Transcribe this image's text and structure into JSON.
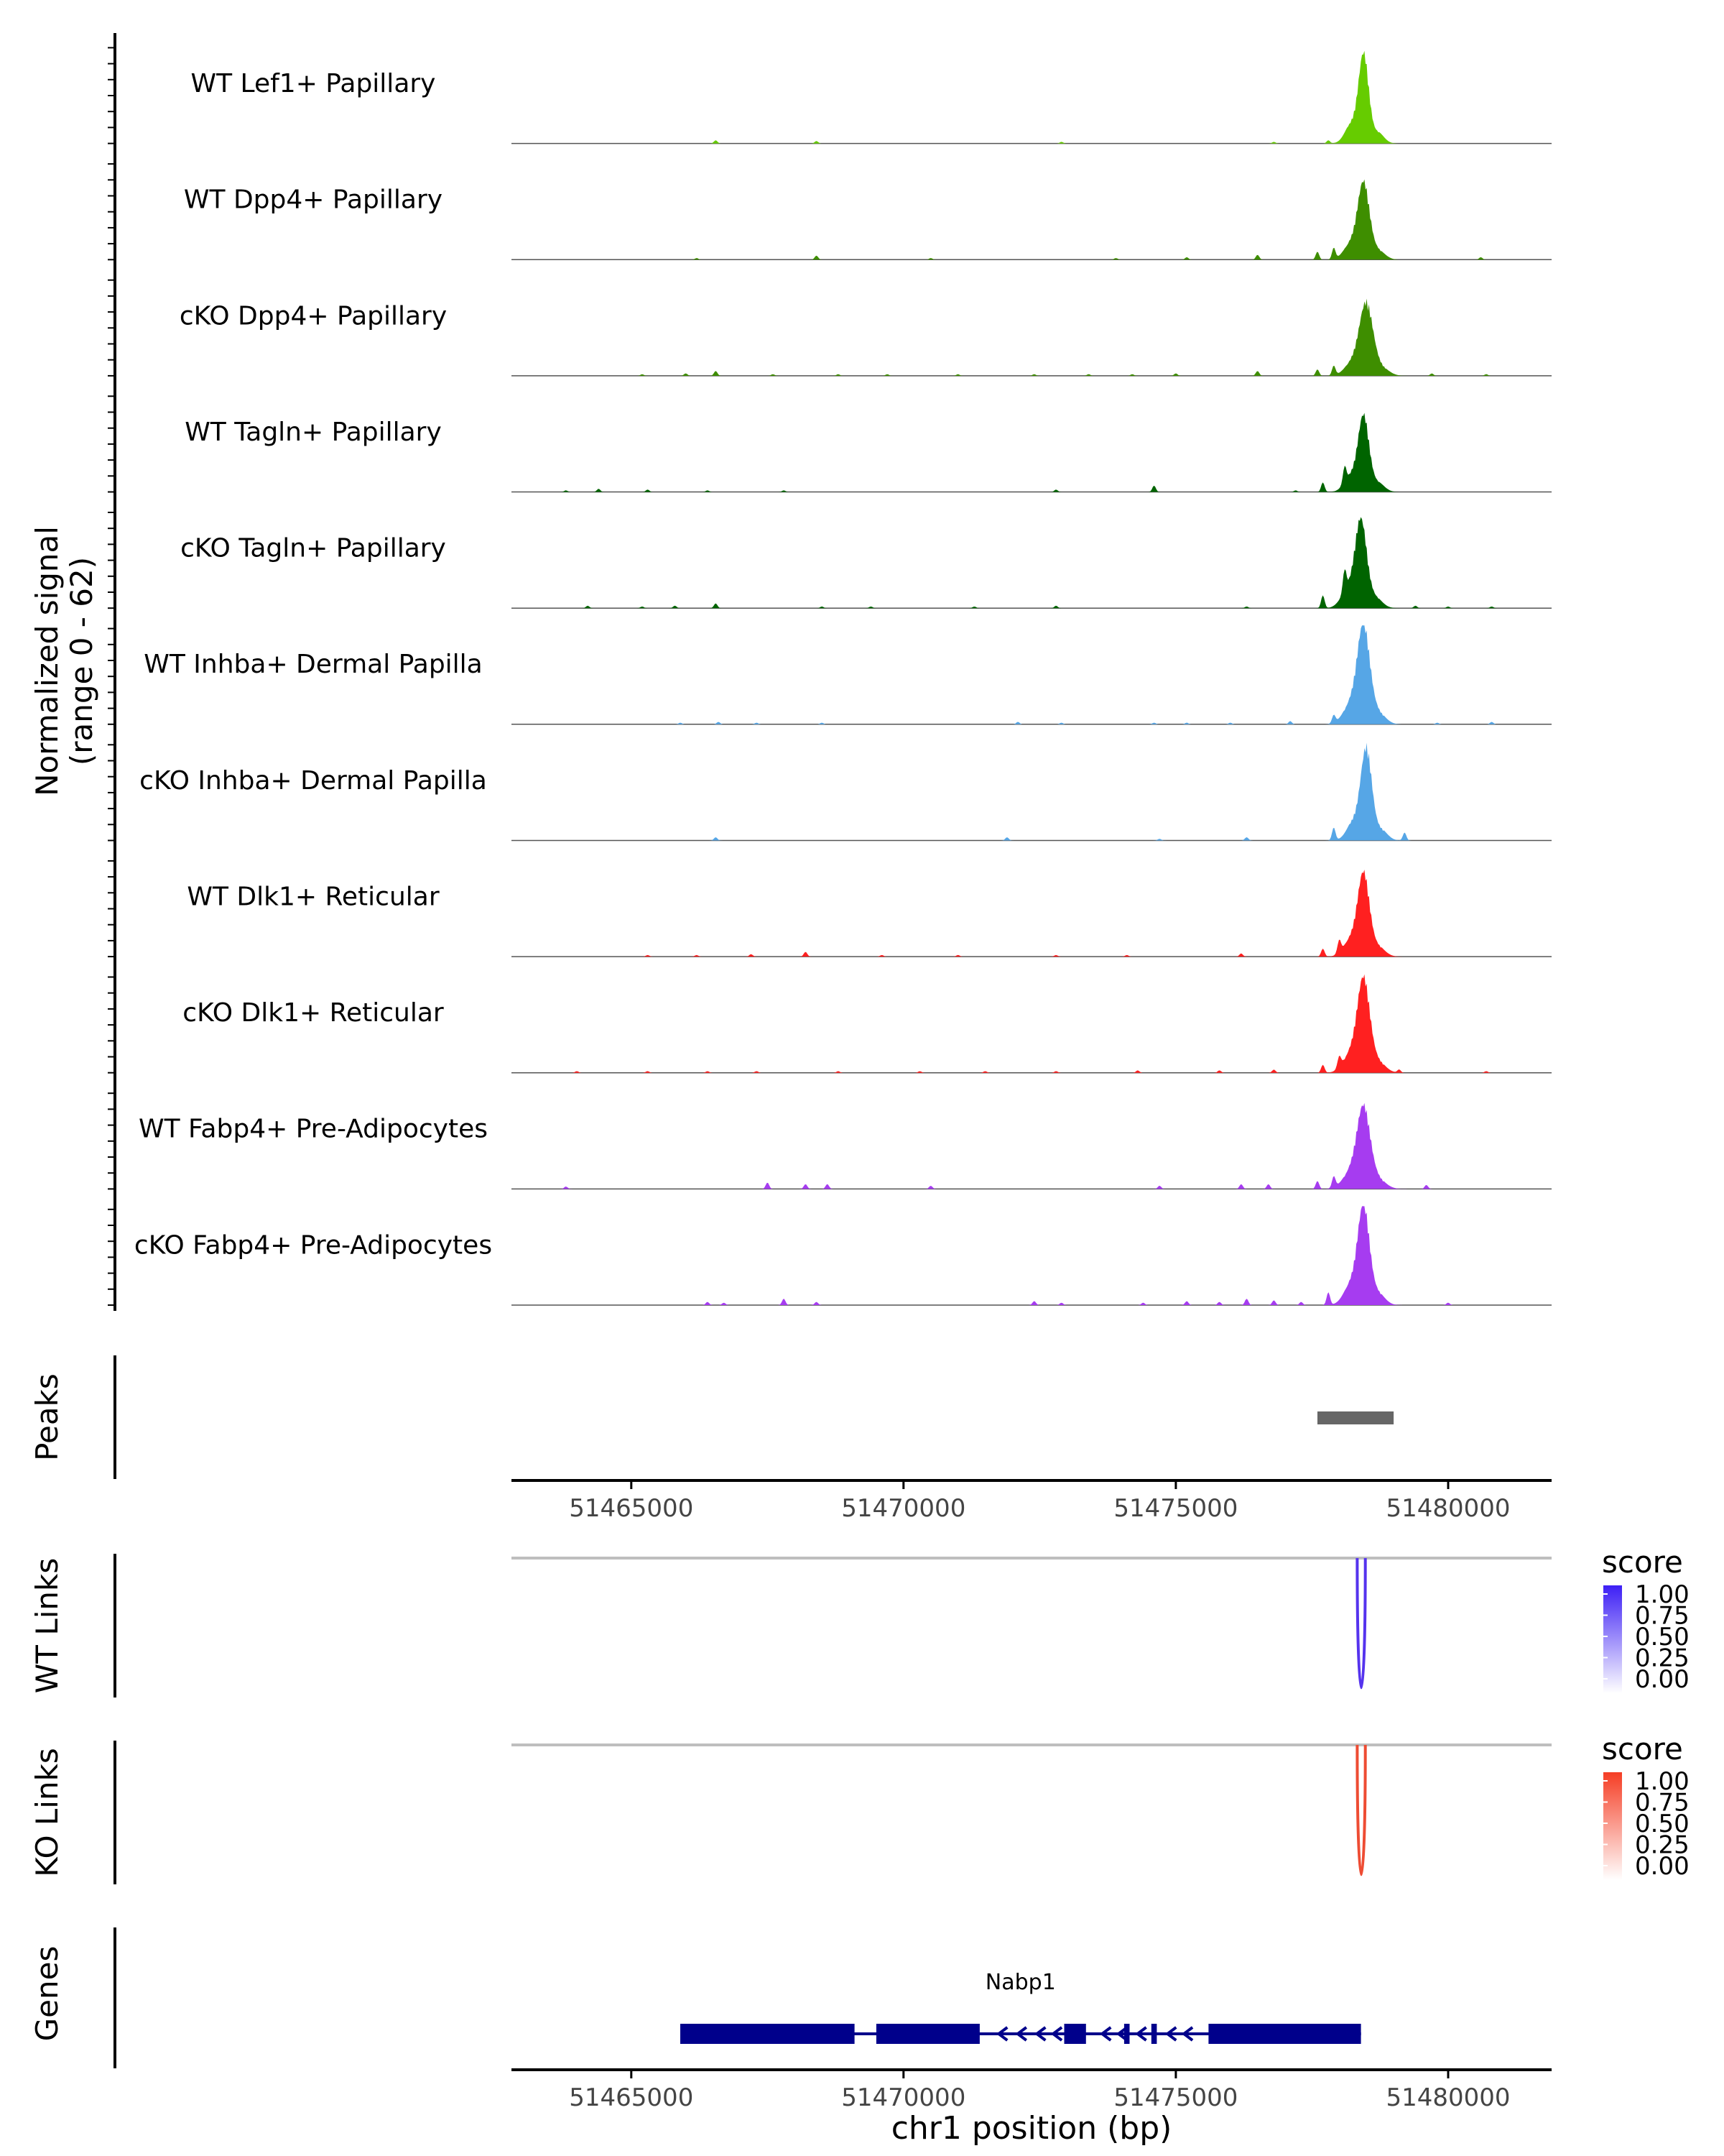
{
  "chart_data": {
    "type": "genome-coverage",
    "region": {
      "chromosome": "chr1",
      "start": 51462800,
      "end": 51481900
    },
    "coverage": {
      "ylabel_line1": "Normalized signal",
      "ylabel_line2": "(range 0 - 62)",
      "ylim": [
        0,
        62
      ],
      "tracks": [
        {
          "name": "WT Lef1+ Papillary",
          "color": "#66CC00",
          "peak_center": 51478450,
          "peak_height": 57,
          "peak_width": 130,
          "blips": [
            [
              51466550,
              2
            ],
            [
              51468400,
              1.5
            ],
            [
              51472900,
              1
            ],
            [
              51476800,
              1
            ],
            [
              51477800,
              2
            ]
          ]
        },
        {
          "name": "WT Dpp4+ Papillary",
          "color": "#3E8E00",
          "peak_center": 51478450,
          "peak_height": 48,
          "peak_width": 150,
          "blips": [
            [
              51466200,
              1
            ],
            [
              51468400,
              2.5
            ],
            [
              51470500,
              1
            ],
            [
              51473900,
              1
            ],
            [
              51475200,
              1.5
            ],
            [
              51476500,
              3
            ],
            [
              51477600,
              5
            ],
            [
              51477900,
              7
            ],
            [
              51480600,
              1.5
            ]
          ]
        },
        {
          "name": "cKO Dpp4+ Papillary",
          "color": "#3E8E00",
          "peak_center": 51478500,
          "peak_height": 44,
          "peak_width": 170,
          "blips": [
            [
              51465200,
              1
            ],
            [
              51466000,
              1.5
            ],
            [
              51466550,
              3
            ],
            [
              51467600,
              1
            ],
            [
              51468800,
              1
            ],
            [
              51469700,
              1
            ],
            [
              51471000,
              1
            ],
            [
              51472400,
              1
            ],
            [
              51473400,
              1
            ],
            [
              51474200,
              1
            ],
            [
              51475000,
              1.5
            ],
            [
              51476500,
              3
            ],
            [
              51477600,
              4
            ],
            [
              51477900,
              6
            ],
            [
              51479700,
              1.5
            ],
            [
              51480700,
              1
            ]
          ]
        },
        {
          "name": "WT Tagln+ Papillary",
          "color": "#006400",
          "peak_center": 51478450,
          "peak_height": 48,
          "peak_width": 140,
          "blips": [
            [
              51463800,
              1
            ],
            [
              51464400,
              2
            ],
            [
              51465300,
              1.5
            ],
            [
              51466400,
              1
            ],
            [
              51467800,
              1
            ],
            [
              51472800,
              1.5
            ],
            [
              51474600,
              4
            ],
            [
              51477200,
              1
            ],
            [
              51477700,
              6
            ],
            [
              51478100,
              10
            ]
          ]
        },
        {
          "name": "cKO Tagln+ Papillary",
          "color": "#006400",
          "peak_center": 51478400,
          "peak_height": 55,
          "peak_width": 150,
          "blips": [
            [
              51464200,
              1.5
            ],
            [
              51465200,
              1
            ],
            [
              51465800,
              1.5
            ],
            [
              51466550,
              3
            ],
            [
              51468500,
              1
            ],
            [
              51469400,
              1
            ],
            [
              51471300,
              1
            ],
            [
              51472800,
              1.5
            ],
            [
              51476300,
              1
            ],
            [
              51477700,
              8
            ],
            [
              51478100,
              14
            ],
            [
              51479400,
              1.5
            ],
            [
              51480000,
              1
            ],
            [
              51480800,
              1
            ]
          ]
        },
        {
          "name": "WT Inhba+ Dermal Papilla",
          "color": "#56A6E6",
          "peak_center": 51478450,
          "peak_height": 61,
          "peak_width": 160,
          "blips": [
            [
              51465900,
              1
            ],
            [
              51466600,
              1.5
            ],
            [
              51467300,
              1
            ],
            [
              51468500,
              1
            ],
            [
              51472100,
              1.5
            ],
            [
              51472900,
              1
            ],
            [
              51474600,
              1
            ],
            [
              51475200,
              1
            ],
            [
              51476000,
              1
            ],
            [
              51477100,
              2
            ],
            [
              51477900,
              5
            ],
            [
              51479800,
              1
            ],
            [
              51480800,
              1.5
            ]
          ]
        },
        {
          "name": "cKO Inhba+ Dermal Papilla",
          "color": "#56A6E6",
          "peak_center": 51478500,
          "peak_height": 58,
          "peak_width": 140,
          "blips": [
            [
              51466550,
              2
            ],
            [
              51471900,
              2
            ],
            [
              51474700,
              1
            ],
            [
              51476300,
              2
            ],
            [
              51477900,
              8
            ],
            [
              51479200,
              5
            ]
          ]
        },
        {
          "name": "WT Dlk1+ Reticular",
          "color": "#FF2020",
          "peak_center": 51478450,
          "peak_height": 52,
          "peak_width": 150,
          "blips": [
            [
              51465300,
              1
            ],
            [
              51466200,
              1
            ],
            [
              51467200,
              1.5
            ],
            [
              51468200,
              3
            ],
            [
              51469600,
              1
            ],
            [
              51471000,
              1
            ],
            [
              51472800,
              1
            ],
            [
              51474100,
              1
            ],
            [
              51476200,
              2
            ],
            [
              51477700,
              5
            ],
            [
              51478000,
              8
            ]
          ]
        },
        {
          "name": "cKO Dlk1+ Reticular",
          "color": "#FF2020",
          "peak_center": 51478450,
          "peak_height": 58,
          "peak_width": 160,
          "blips": [
            [
              51464000,
              1
            ],
            [
              51465300,
              1
            ],
            [
              51466400,
              1
            ],
            [
              51467300,
              1
            ],
            [
              51468800,
              1
            ],
            [
              51470300,
              1
            ],
            [
              51471500,
              1
            ],
            [
              51472800,
              1
            ],
            [
              51474300,
              1.5
            ],
            [
              51475800,
              1.5
            ],
            [
              51476800,
              2
            ],
            [
              51477700,
              5
            ],
            [
              51478000,
              7
            ],
            [
              51479100,
              2
            ],
            [
              51480700,
              1
            ]
          ]
        },
        {
          "name": "WT Fabp4+ Pre-Adipocytes",
          "color": "#A63CF0",
          "peak_center": 51478450,
          "peak_height": 50,
          "peak_width": 170,
          "blips": [
            [
              51463800,
              1.5
            ],
            [
              51467500,
              4
            ],
            [
              51468200,
              3
            ],
            [
              51468600,
              3
            ],
            [
              51470500,
              2
            ],
            [
              51474700,
              2
            ],
            [
              51476200,
              3
            ],
            [
              51476700,
              3
            ],
            [
              51477600,
              5
            ],
            [
              51477900,
              7
            ],
            [
              51479600,
              2.5
            ]
          ]
        },
        {
          "name": "cKO Fabp4+ Pre-Adipocytes",
          "color": "#A63CF0",
          "peak_center": 51478450,
          "peak_height": 62,
          "peak_width": 150,
          "blips": [
            [
              51466400,
              2
            ],
            [
              51466700,
              1.5
            ],
            [
              51467800,
              4
            ],
            [
              51468400,
              2
            ],
            [
              51472400,
              2.5
            ],
            [
              51472900,
              1.5
            ],
            [
              51474400,
              1.5
            ],
            [
              51475200,
              2.5
            ],
            [
              51475800,
              2
            ],
            [
              51476300,
              4
            ],
            [
              51476800,
              3
            ],
            [
              51477300,
              2
            ],
            [
              51477800,
              8
            ],
            [
              51480000,
              1.5
            ]
          ]
        }
      ]
    },
    "peaks": {
      "label": "Peaks",
      "regions": [
        [
          51477600,
          51479000
        ]
      ],
      "color": "#666666"
    },
    "axis": {
      "ticks": [
        51465000,
        51470000,
        51475000,
        51480000
      ],
      "tick_labels": [
        "51465000",
        "51470000",
        "51475000",
        "51480000"
      ]
    },
    "links": [
      {
        "label": "WT Links",
        "color": "#5533EE",
        "from": 51478330,
        "to": 51478480,
        "score": 1.0,
        "depth": 1.0
      },
      {
        "label": "KO Links",
        "color": "#EE4C33",
        "from": 51478330,
        "to": 51478480,
        "score": 0.85,
        "depth": 1.0
      }
    ],
    "legends": [
      {
        "title": "score",
        "low_color": "#FFFFFF",
        "high_color": "#3D1FF5",
        "labels": [
          "1.00",
          "0.75",
          "0.50",
          "0.25",
          "0.00"
        ]
      },
      {
        "title": "score",
        "low_color": "#FFFFFF",
        "high_color": "#F53D24",
        "labels": [
          "1.00",
          "0.75",
          "0.50",
          "0.25",
          "0.00"
        ]
      }
    ],
    "genes": {
      "label": "Genes",
      "color": "#00008B",
      "items": [
        {
          "name": "Nabp1",
          "strand": "-",
          "start": 51465900,
          "end": 51478400,
          "exons": [
            [
              51465900,
              51469100
            ],
            [
              51469500,
              51471400
            ],
            [
              51472950,
              51473350
            ],
            [
              51474050,
              51474150
            ],
            [
              51474550,
              51474650
            ],
            [
              51475600,
              51477600
            ],
            [
              51477600,
              51478400
            ]
          ],
          "arrows": [
            51471800,
            51472150,
            51472500,
            51472800,
            51473700,
            51474000,
            51474350,
            51474900,
            51475200
          ]
        }
      ]
    },
    "xlabel": "chr1 position (bp)"
  }
}
